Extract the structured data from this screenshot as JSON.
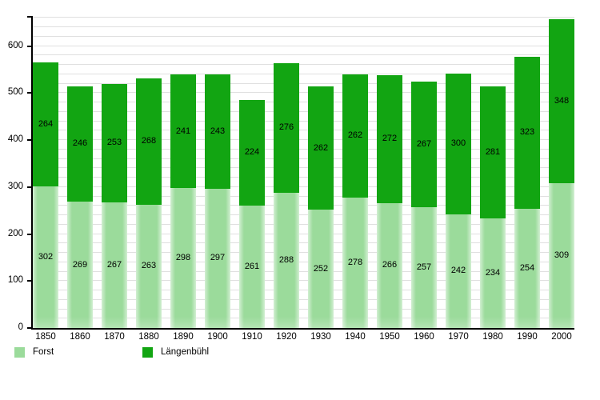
{
  "chart_data": {
    "type": "bar",
    "stacked": true,
    "title": "",
    "xlabel": "",
    "ylabel": "",
    "categories": [
      "1850",
      "1860",
      "1870",
      "1880",
      "1890",
      "1900",
      "1910",
      "1920",
      "1930",
      "1940",
      "1950",
      "1960",
      "1970",
      "1980",
      "1990",
      "2000"
    ],
    "series": [
      {
        "name": "Forst",
        "color": "#9BDB9B",
        "values": [
          302,
          269,
          267,
          263,
          298,
          297,
          261,
          288,
          252,
          278,
          266,
          257,
          242,
          234,
          254,
          309
        ]
      },
      {
        "name": "Längenbühl",
        "color": "#12A512",
        "values": [
          264,
          246,
          253,
          268,
          241,
          243,
          224,
          276,
          262,
          262,
          272,
          267,
          300,
          281,
          323,
          348
        ]
      }
    ],
    "ylim": [
      0,
      664
    ],
    "yticks": [
      0,
      100,
      200,
      300,
      400,
      500,
      600
    ],
    "minor_grid_step": 20,
    "grid": true,
    "legend_position": "bottom-left",
    "colors": {
      "gridline": "#e0e0e0",
      "axis": "#000000",
      "text": "#000000",
      "background": "#ffffff"
    }
  }
}
